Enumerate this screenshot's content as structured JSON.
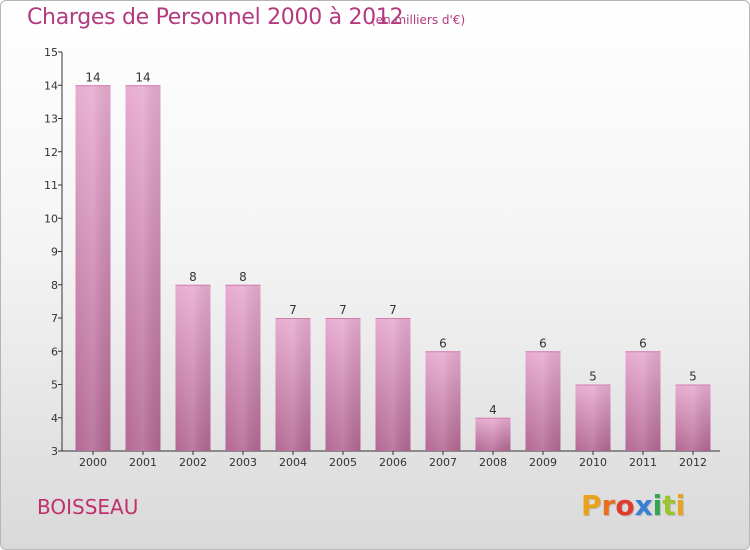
{
  "title": "Charges de Personnel 2000 à 2012",
  "subtitle": "(en milliers d'€)",
  "town": "BOISSEAU",
  "logo": {
    "letters": [
      {
        "ch": "P",
        "color": "#e8a21c"
      },
      {
        "ch": "r",
        "color": "#e86f1c"
      },
      {
        "ch": "o",
        "color": "#e03b2f"
      },
      {
        "ch": "x",
        "color": "#3b7fd4"
      },
      {
        "ch": "i",
        "color": "#2fa84f"
      },
      {
        "ch": "t",
        "color": "#9ac52b"
      },
      {
        "ch": "i",
        "color": "#e8a21c"
      }
    ]
  },
  "colors": {
    "accent": "#b33a7f",
    "bar_light": "#e6a9cd",
    "bar_dark": "#b56a95",
    "axis": "#333333"
  },
  "chart_data": {
    "type": "bar",
    "categories": [
      "2000",
      "2001",
      "2002",
      "2003",
      "2004",
      "2005",
      "2006",
      "2007",
      "2008",
      "2009",
      "2010",
      "2011",
      "2012"
    ],
    "values": [
      14,
      14,
      8,
      8,
      7,
      7,
      7,
      6,
      4,
      6,
      5,
      6,
      5
    ],
    "title": "Charges de Personnel 2000 à 2012",
    "ylim": [
      3,
      15
    ],
    "yticks": [
      3,
      4,
      5,
      6,
      7,
      8,
      9,
      10,
      11,
      12,
      13,
      14,
      15
    ],
    "grid": false,
    "data_labels": true
  }
}
